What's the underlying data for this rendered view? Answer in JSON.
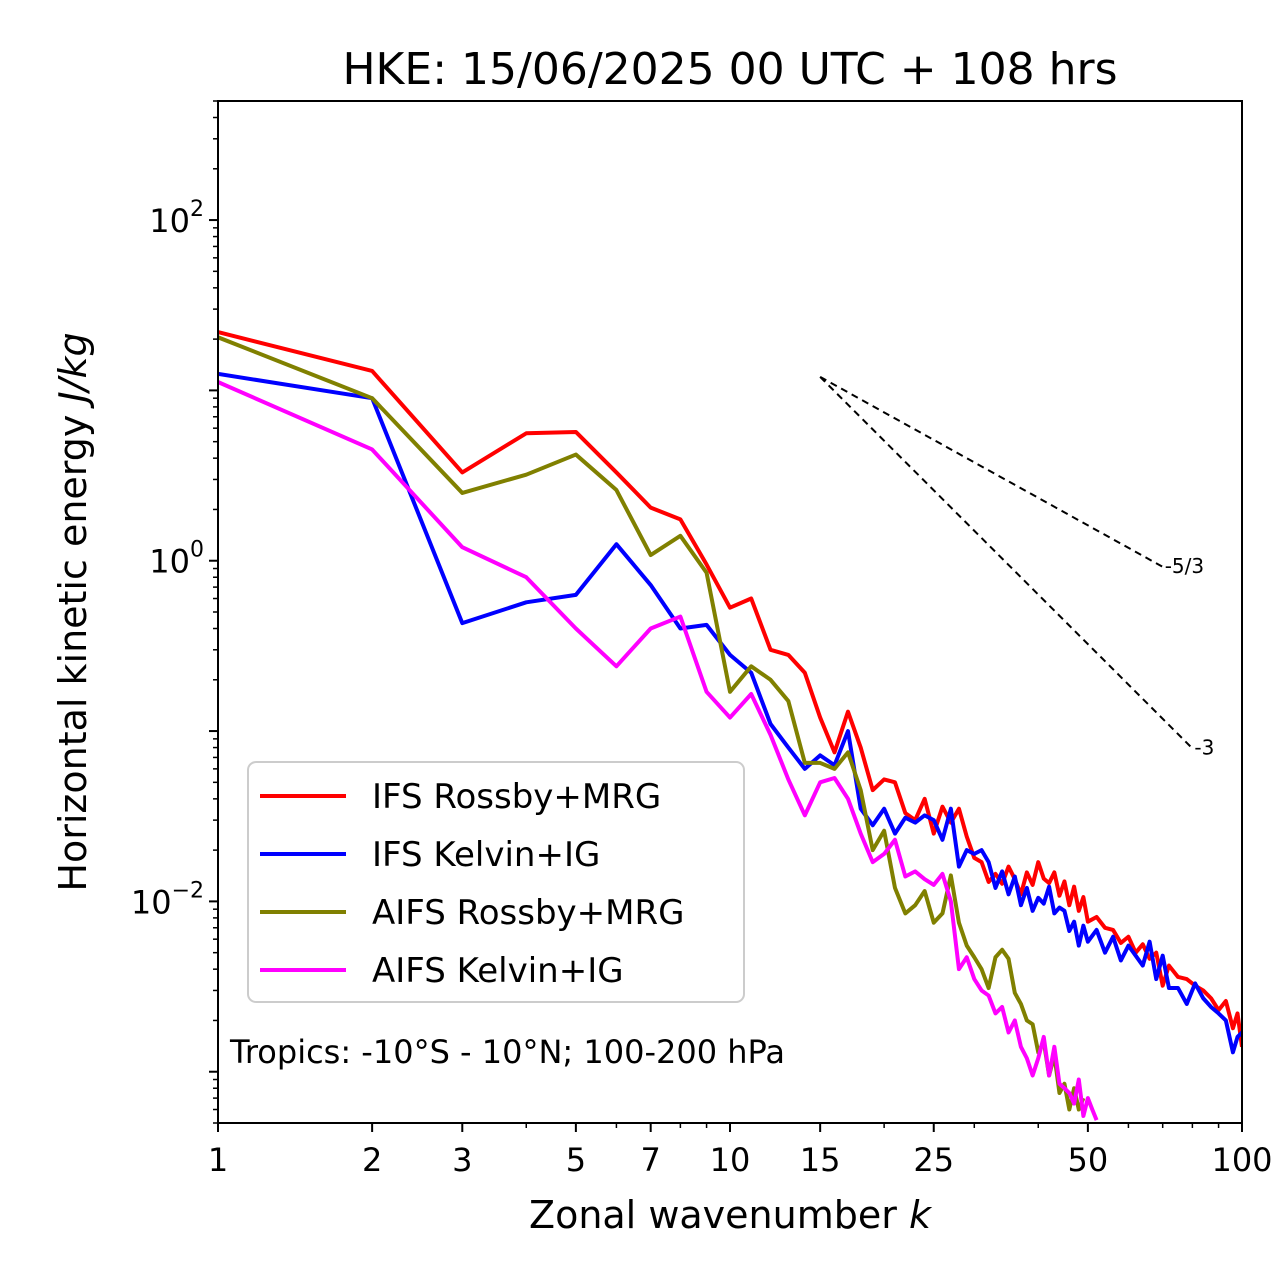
{
  "chart_data": {
    "type": "line",
    "title": "HKE: 15/06/2025 00 UTC + 108 hrs",
    "xlabel": "Zonal wavenumber",
    "xlabel_var": "k",
    "ylabel": "Horizontal kinetic energy",
    "ylabel_unit": "J/kg",
    "xscale": "log",
    "yscale": "log",
    "xlim": [
      1,
      100
    ],
    "ylim": [
      0.0005,
      500
    ],
    "x_ticks": [
      1,
      2,
      3,
      5,
      7,
      10,
      15,
      25,
      50,
      100
    ],
    "x_tick_labels": [
      "1",
      "2",
      "3",
      "5",
      "7",
      "10",
      "15",
      "25",
      "50",
      "100"
    ],
    "y_ticks": [
      0.01,
      1,
      100
    ],
    "y_tick_labels": [
      {
        "base": "10",
        "exp": "−2"
      },
      {
        "base": "10",
        "exp": "0"
      },
      {
        "base": "10",
        "exp": "2"
      }
    ],
    "grid": false,
    "legend_position": "lower-left",
    "annotation": "Tropics: -10°S - 10°N; 100-200 hPa",
    "reference_lines": [
      {
        "label": "-5/3",
        "slope": -1.6667,
        "x": [
          15,
          70
        ],
        "y0": 12
      },
      {
        "label": "-3",
        "slope": -3,
        "x": [
          15,
          80
        ],
        "y0": 12
      }
    ],
    "series": [
      {
        "name": "IFS Rossby+MRG",
        "color": "#ff0000",
        "points": [
          [
            1,
            22
          ],
          [
            2,
            13
          ],
          [
            3,
            3.3
          ],
          [
            4,
            5.6
          ],
          [
            5,
            5.7
          ],
          [
            6,
            3.3
          ],
          [
            7,
            2.05
          ],
          [
            8,
            1.75
          ],
          [
            9,
            0.95
          ],
          [
            10,
            0.53
          ],
          [
            11,
            0.6
          ],
          [
            12,
            0.3
          ],
          [
            13,
            0.28
          ],
          [
            14,
            0.22
          ],
          [
            15,
            0.12
          ],
          [
            16,
            0.075
          ],
          [
            17,
            0.13
          ],
          [
            18,
            0.08
          ],
          [
            19,
            0.045
          ],
          [
            20,
            0.052
          ],
          [
            21,
            0.05
          ],
          [
            22,
            0.033
          ],
          [
            23,
            0.03
          ],
          [
            24,
            0.04
          ],
          [
            25,
            0.025
          ],
          [
            26,
            0.036
          ],
          [
            27,
            0.029
          ],
          [
            28,
            0.035
          ],
          [
            29,
            0.024
          ],
          [
            30,
            0.018
          ],
          [
            31,
            0.017
          ],
          [
            32,
            0.013
          ],
          [
            33,
            0.0145
          ],
          [
            34,
            0.0127
          ],
          [
            35,
            0.016
          ],
          [
            36,
            0.0135
          ],
          [
            37,
            0.011
          ],
          [
            38,
            0.0148
          ],
          [
            39,
            0.0125
          ],
          [
            40,
            0.017
          ],
          [
            41,
            0.0136
          ],
          [
            42,
            0.0128
          ],
          [
            43,
            0.0148
          ],
          [
            44,
            0.0108
          ],
          [
            45,
            0.0131
          ],
          [
            46,
            0.0095
          ],
          [
            47,
            0.0122
          ],
          [
            48,
            0.0088
          ],
          [
            49,
            0.0106
          ],
          [
            50,
            0.0076
          ],
          [
            52,
            0.0081
          ],
          [
            54,
            0.007
          ],
          [
            56,
            0.0068
          ],
          [
            58,
            0.0057
          ],
          [
            60,
            0.0062
          ],
          [
            62,
            0.005
          ],
          [
            64,
            0.0056
          ],
          [
            66,
            0.0046
          ],
          [
            68,
            0.005
          ],
          [
            70,
            0.0032
          ],
          [
            72,
            0.0042
          ],
          [
            75,
            0.0036
          ],
          [
            78,
            0.0035
          ],
          [
            81,
            0.0032
          ],
          [
            84,
            0.003
          ],
          [
            87,
            0.0027
          ],
          [
            90,
            0.0023
          ],
          [
            93,
            0.0026
          ],
          [
            96,
            0.0018
          ],
          [
            98,
            0.0022
          ],
          [
            100,
            0.0014
          ]
        ]
      },
      {
        "name": "IFS Kelvin+IG",
        "color": "#0000ff",
        "points": [
          [
            1,
            12.5
          ],
          [
            2,
            9
          ],
          [
            3,
            0.43
          ],
          [
            4,
            0.57
          ],
          [
            5,
            0.63
          ],
          [
            6,
            1.25
          ],
          [
            7,
            0.72
          ],
          [
            8,
            0.4
          ],
          [
            9,
            0.42
          ],
          [
            10,
            0.28
          ],
          [
            11,
            0.22
          ],
          [
            12,
            0.11
          ],
          [
            13,
            0.08
          ],
          [
            14,
            0.06
          ],
          [
            15,
            0.072
          ],
          [
            16,
            0.063
          ],
          [
            17,
            0.1
          ],
          [
            18,
            0.035
          ],
          [
            19,
            0.028
          ],
          [
            20,
            0.035
          ],
          [
            21,
            0.025
          ],
          [
            22,
            0.031
          ],
          [
            23,
            0.029
          ],
          [
            24,
            0.032
          ],
          [
            25,
            0.03
          ],
          [
            26,
            0.023
          ],
          [
            27,
            0.035
          ],
          [
            28,
            0.016
          ],
          [
            29,
            0.02
          ],
          [
            30,
            0.019
          ],
          [
            31,
            0.02
          ],
          [
            32,
            0.017
          ],
          [
            33,
            0.012
          ],
          [
            34,
            0.015
          ],
          [
            35,
            0.011
          ],
          [
            36,
            0.014
          ],
          [
            37,
            0.0095
          ],
          [
            38,
            0.012
          ],
          [
            39,
            0.0088
          ],
          [
            40,
            0.0105
          ],
          [
            41,
            0.0097
          ],
          [
            42,
            0.0122
          ],
          [
            43,
            0.0085
          ],
          [
            44,
            0.0092
          ],
          [
            45,
            0.0088
          ],
          [
            46,
            0.0067
          ],
          [
            47,
            0.0076
          ],
          [
            48,
            0.0055
          ],
          [
            49,
            0.0072
          ],
          [
            50,
            0.0058
          ],
          [
            52,
            0.0068
          ],
          [
            54,
            0.005
          ],
          [
            56,
            0.0062
          ],
          [
            58,
            0.0045
          ],
          [
            60,
            0.0055
          ],
          [
            62,
            0.0048
          ],
          [
            64,
            0.0042
          ],
          [
            66,
            0.0058
          ],
          [
            68,
            0.0035
          ],
          [
            70,
            0.0048
          ],
          [
            72,
            0.0031
          ],
          [
            75,
            0.0031
          ],
          [
            78,
            0.0025
          ],
          [
            81,
            0.0033
          ],
          [
            84,
            0.0027
          ],
          [
            87,
            0.0024
          ],
          [
            90,
            0.0022
          ],
          [
            93,
            0.002
          ],
          [
            96,
            0.0013
          ],
          [
            98,
            0.0016
          ],
          [
            100,
            0.0017
          ]
        ]
      },
      {
        "name": "AIFS Rossby+MRG",
        "color": "#808000",
        "points": [
          [
            1,
            20.5
          ],
          [
            2,
            9
          ],
          [
            3,
            2.5
          ],
          [
            4,
            3.2
          ],
          [
            5,
            4.2
          ],
          [
            6,
            2.6
          ],
          [
            7,
            1.08
          ],
          [
            8,
            1.4
          ],
          [
            9,
            0.85
          ],
          [
            10,
            0.17
          ],
          [
            11,
            0.24
          ],
          [
            12,
            0.2
          ],
          [
            13,
            0.15
          ],
          [
            14,
            0.065
          ],
          [
            15,
            0.065
          ],
          [
            16,
            0.06
          ],
          [
            17,
            0.075
          ],
          [
            18,
            0.045
          ],
          [
            19,
            0.02
          ],
          [
            20,
            0.026
          ],
          [
            21,
            0.012
          ],
          [
            22,
            0.0085
          ],
          [
            23,
            0.0095
          ],
          [
            24,
            0.0115
          ],
          [
            25,
            0.0075
          ],
          [
            26,
            0.0085
          ],
          [
            27,
            0.0142
          ],
          [
            28,
            0.0075
          ],
          [
            29,
            0.0055
          ],
          [
            30,
            0.0047
          ],
          [
            31,
            0.004
          ],
          [
            32,
            0.0031
          ],
          [
            33,
            0.0047
          ],
          [
            34,
            0.0052
          ],
          [
            35,
            0.0046
          ],
          [
            36,
            0.0029
          ],
          [
            37,
            0.0025
          ],
          [
            38,
            0.002
          ],
          [
            39,
            0.0019
          ],
          [
            40,
            0.0013
          ],
          [
            41,
            0.0015
          ],
          [
            42,
            0.00095
          ],
          [
            43,
            0.00125
          ],
          [
            44,
            0.00075
          ],
          [
            45,
            0.00085
          ],
          [
            46,
            0.0006
          ],
          [
            47,
            0.0008
          ],
          [
            48,
            0.0006
          ],
          [
            49,
            0.0007
          ]
        ]
      },
      {
        "name": "AIFS Kelvin+IG",
        "color": "#ff00ff",
        "points": [
          [
            1,
            11.2
          ],
          [
            2,
            4.5
          ],
          [
            3,
            1.2
          ],
          [
            4,
            0.8
          ],
          [
            5,
            0.4
          ],
          [
            6,
            0.24
          ],
          [
            7,
            0.4
          ],
          [
            8,
            0.47
          ],
          [
            9,
            0.17
          ],
          [
            10,
            0.12
          ],
          [
            11,
            0.165
          ],
          [
            12,
            0.095
          ],
          [
            13,
            0.052
          ],
          [
            14,
            0.032
          ],
          [
            15,
            0.05
          ],
          [
            16,
            0.053
          ],
          [
            17,
            0.04
          ],
          [
            18,
            0.025
          ],
          [
            19,
            0.017
          ],
          [
            20,
            0.019
          ],
          [
            21,
            0.023
          ],
          [
            22,
            0.014
          ],
          [
            23,
            0.015
          ],
          [
            24,
            0.0135
          ],
          [
            25,
            0.0125
          ],
          [
            26,
            0.0145
          ],
          [
            27,
            0.01
          ],
          [
            28,
            0.004
          ],
          [
            29,
            0.0047
          ],
          [
            30,
            0.0035
          ],
          [
            31,
            0.003
          ],
          [
            32,
            0.0028
          ],
          [
            33,
            0.0022
          ],
          [
            34,
            0.0024
          ],
          [
            35,
            0.0017
          ],
          [
            36,
            0.002
          ],
          [
            37,
            0.0014
          ],
          [
            38,
            0.0012
          ],
          [
            39,
            0.00095
          ],
          [
            40,
            0.0012
          ],
          [
            41,
            0.0016
          ],
          [
            42,
            0.00095
          ],
          [
            43,
            0.0014
          ],
          [
            44,
            0.00085
          ],
          [
            45,
            0.0008
          ],
          [
            46,
            0.00075
          ],
          [
            47,
            0.00065
          ],
          [
            48,
            0.0009
          ],
          [
            49,
            0.00055
          ],
          [
            50,
            0.0007
          ],
          [
            51,
            0.0006
          ],
          [
            52,
            0.00052
          ]
        ]
      }
    ]
  }
}
